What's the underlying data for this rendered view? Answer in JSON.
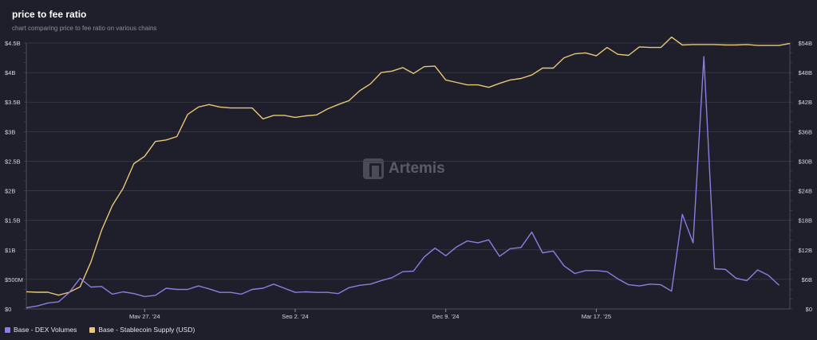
{
  "header": {
    "title": "price to fee ratio",
    "subtitle": "chart comparing price to fee ratio on various chains"
  },
  "watermark": "Artemis",
  "legend": [
    {
      "label": "Base - DEX Volumes",
      "color": "#8a7fe0"
    },
    {
      "label": "Base - Stablecoin Supply (USD)",
      "color": "#e8c877"
    }
  ],
  "colors": {
    "background": "#1e1f2b",
    "grid": "#3a3c4a",
    "dex": "#8a7fe0",
    "stable": "#e8c877"
  },
  "chart_data": {
    "type": "line",
    "title": "price to fee ratio",
    "subtitle": "chart comparing price to fee ratio on various chains",
    "x_tick_labels": [
      "May 27, '24",
      "Sep 2, '24",
      "Dec 9, '24",
      "Mar 17, '25"
    ],
    "x_tick_points": [
      11,
      25,
      39,
      53
    ],
    "y_left": {
      "ticks": [
        0,
        0.5,
        1,
        1.5,
        2,
        2.5,
        3,
        3.5,
        4,
        4.5
      ],
      "tick_labels": [
        "$0",
        "$500M",
        "$1B",
        "$1.5B",
        "$2B",
        "$2.5B",
        "$3B",
        "$3.5B",
        "$4B",
        "$4.5B"
      ],
      "unit": "billion USD",
      "ylim": [
        0,
        4.5
      ]
    },
    "y_right": {
      "ticks": [
        0,
        6,
        12,
        18,
        24,
        30,
        36,
        42,
        48,
        54
      ],
      "tick_labels": [
        "$0",
        "$6B",
        "$12B",
        "$18B",
        "$24B",
        "$30B",
        "$36B",
        "$42B",
        "$48B",
        "$54B"
      ],
      "unit": "billion USD",
      "ylim": [
        0,
        54
      ]
    },
    "grid": true,
    "legend_position": "bottom-left",
    "series": [
      {
        "name": "Base - DEX Volumes",
        "axis": "left",
        "values": [
          0.02,
          0.05,
          0.1,
          0.12,
          0.28,
          0.52,
          0.37,
          0.38,
          0.25,
          0.29,
          0.26,
          0.21,
          0.23,
          0.35,
          0.33,
          0.33,
          0.39,
          0.34,
          0.28,
          0.28,
          0.25,
          0.33,
          0.35,
          0.42,
          0.35,
          0.28,
          0.29,
          0.28,
          0.28,
          0.26,
          0.36,
          0.4,
          0.42,
          0.48,
          0.53,
          0.63,
          0.64,
          0.88,
          1.03,
          0.9,
          1.05,
          1.15,
          1.12,
          1.17,
          0.89,
          1.02,
          1.04,
          1.3,
          0.95,
          0.98,
          0.73,
          0.6,
          0.65,
          0.65,
          0.63,
          0.51,
          0.41,
          0.39,
          0.42,
          0.41,
          0.3,
          1.6,
          1.12,
          4.27,
          0.68,
          0.67,
          0.52,
          0.48,
          0.66,
          0.57,
          0.4
        ]
      },
      {
        "name": "Base - Stablecoin Supply (USD)",
        "axis": "right",
        "values": [
          3.5,
          3.4,
          3.4,
          2.8,
          3.4,
          4.5,
          9.5,
          16,
          21,
          24.5,
          29.5,
          31,
          34,
          34.3,
          35,
          39.5,
          41,
          41.5,
          41,
          40.8,
          40.8,
          40.8,
          38.6,
          39.3,
          39.3,
          38.9,
          39.2,
          39.4,
          40.6,
          41.5,
          42.3,
          44.3,
          45.7,
          48,
          48.3,
          49,
          47.8,
          49.2,
          49.3,
          46.5,
          46,
          45.5,
          45.5,
          45,
          45.8,
          46.5,
          46.8,
          47.5,
          48.9,
          48.9,
          51,
          51.8,
          52,
          51.4,
          53.1,
          51.7,
          51.5,
          53.2,
          53.1,
          53.1,
          55.2,
          53.6,
          53.7,
          53.7,
          53.7,
          53.6,
          53.6,
          53.7,
          53.5,
          53.5,
          53.5,
          53.9
        ]
      }
    ]
  }
}
